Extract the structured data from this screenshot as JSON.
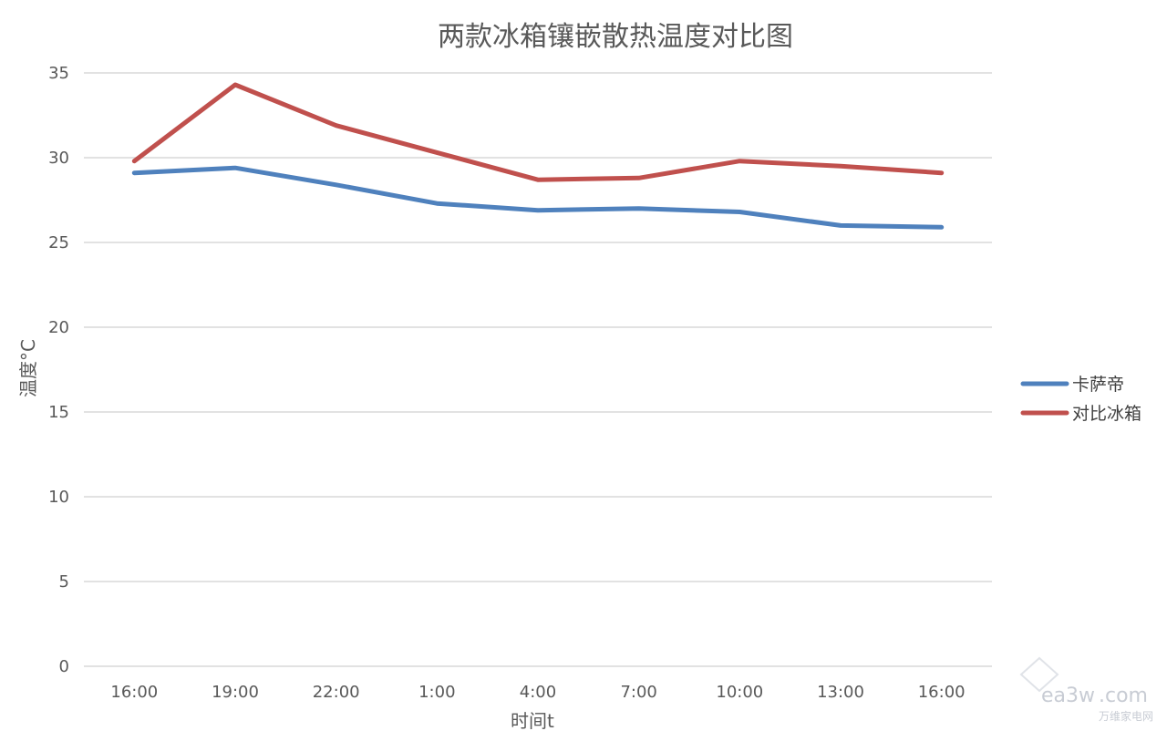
{
  "chart_data": {
    "type": "line",
    "title": "两款冰箱镶嵌散热温度对比图",
    "xlabel": "时间t",
    "ylabel": "温度°C",
    "categories": [
      "16:00",
      "19:00",
      "22:00",
      "1:00",
      "4:00",
      "7:00",
      "10:00",
      "13:00",
      "16:00"
    ],
    "ylim": [
      0,
      35
    ],
    "yticks": [
      0,
      5,
      10,
      15,
      20,
      25,
      30,
      35
    ],
    "grid": true,
    "legend_position": "right",
    "series": [
      {
        "name": "卡萨帝",
        "color": "#4f81bd",
        "values": [
          29.1,
          29.4,
          28.4,
          27.3,
          26.9,
          27.0,
          26.8,
          26.0,
          25.9
        ]
      },
      {
        "name": "对比冰箱",
        "color": "#c0504d",
        "values": [
          29.8,
          34.3,
          31.9,
          30.3,
          28.7,
          28.8,
          29.8,
          29.5,
          29.1
        ]
      }
    ]
  },
  "watermark": {
    "brand": "ea3w",
    "domain": ".com",
    "sub": "万维家电网"
  }
}
